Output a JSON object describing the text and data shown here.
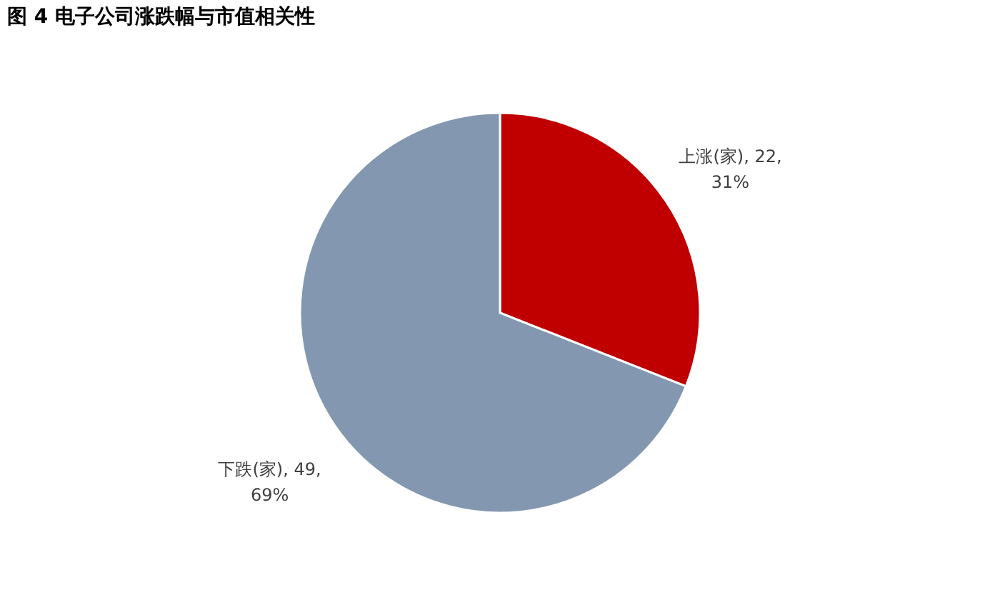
{
  "chart_data": {
    "type": "pie",
    "title": "图 4  电子公司涨跌幅与市值相关性",
    "categories": [
      "上涨(家)",
      "下跌(家)"
    ],
    "values": [
      22,
      49
    ],
    "colors": [
      "#c00000",
      "#8497b0"
    ],
    "value_labels": [
      "22, 31%",
      "49, 69%"
    ],
    "legend": false
  }
}
